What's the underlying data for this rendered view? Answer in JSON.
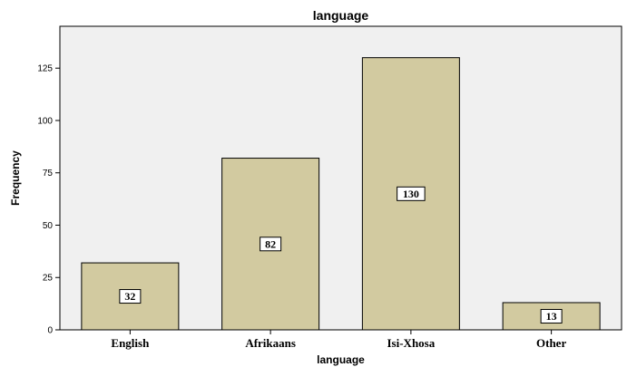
{
  "chart_data": {
    "type": "bar",
    "title": "language",
    "xlabel": "language",
    "ylabel": "Frequency",
    "categories": [
      "English",
      "Afrikaans",
      "Isi-Xhosa",
      "Other"
    ],
    "values": [
      32,
      82,
      130,
      13
    ],
    "data_labels": [
      "32",
      "82",
      "130",
      "13"
    ],
    "ylim": [
      0,
      145
    ],
    "yticks": [
      0,
      25,
      50,
      75,
      100,
      125
    ],
    "ytick_labels": [
      "0",
      "25",
      "50",
      "75",
      "100",
      "125"
    ],
    "grid": false,
    "legend": "none",
    "colors": {
      "bar_fill": "#d2caa0",
      "plot_background": "#f0f0f0",
      "bar_stroke": "#000000"
    }
  }
}
